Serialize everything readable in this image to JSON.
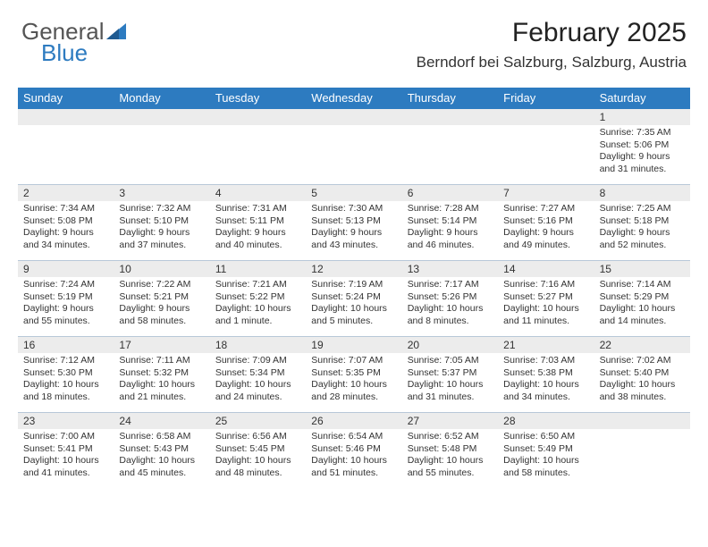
{
  "logo": {
    "general": "General",
    "blue": "Blue"
  },
  "header": {
    "month": "February 2025",
    "location": "Berndorf bei Salzburg, Salzburg, Austria"
  },
  "dayHeaders": [
    "Sunday",
    "Monday",
    "Tuesday",
    "Wednesday",
    "Thursday",
    "Friday",
    "Saturday"
  ],
  "colors": {
    "headerBar": "#2d7bc0",
    "bandGray": "#ececec",
    "rowBorder": "#b8c8d8",
    "textColor": "#333333",
    "logoBlue": "#2d7bc0",
    "logoGray": "#555555",
    "background": "#ffffff"
  },
  "typography": {
    "monthTitleSize": 30,
    "locationSize": 17,
    "dayHeaderSize": 13,
    "dayNumberSize": 12,
    "detailSize": 10.5,
    "fontFamily": "Arial"
  },
  "weeks": [
    [
      null,
      null,
      null,
      null,
      null,
      null,
      {
        "n": "1",
        "sunrise": "Sunrise: 7:35 AM",
        "sunset": "Sunset: 5:06 PM",
        "daylight1": "Daylight: 9 hours",
        "daylight2": "and 31 minutes."
      }
    ],
    [
      {
        "n": "2",
        "sunrise": "Sunrise: 7:34 AM",
        "sunset": "Sunset: 5:08 PM",
        "daylight1": "Daylight: 9 hours",
        "daylight2": "and 34 minutes."
      },
      {
        "n": "3",
        "sunrise": "Sunrise: 7:32 AM",
        "sunset": "Sunset: 5:10 PM",
        "daylight1": "Daylight: 9 hours",
        "daylight2": "and 37 minutes."
      },
      {
        "n": "4",
        "sunrise": "Sunrise: 7:31 AM",
        "sunset": "Sunset: 5:11 PM",
        "daylight1": "Daylight: 9 hours",
        "daylight2": "and 40 minutes."
      },
      {
        "n": "5",
        "sunrise": "Sunrise: 7:30 AM",
        "sunset": "Sunset: 5:13 PM",
        "daylight1": "Daylight: 9 hours",
        "daylight2": "and 43 minutes."
      },
      {
        "n": "6",
        "sunrise": "Sunrise: 7:28 AM",
        "sunset": "Sunset: 5:14 PM",
        "daylight1": "Daylight: 9 hours",
        "daylight2": "and 46 minutes."
      },
      {
        "n": "7",
        "sunrise": "Sunrise: 7:27 AM",
        "sunset": "Sunset: 5:16 PM",
        "daylight1": "Daylight: 9 hours",
        "daylight2": "and 49 minutes."
      },
      {
        "n": "8",
        "sunrise": "Sunrise: 7:25 AM",
        "sunset": "Sunset: 5:18 PM",
        "daylight1": "Daylight: 9 hours",
        "daylight2": "and 52 minutes."
      }
    ],
    [
      {
        "n": "9",
        "sunrise": "Sunrise: 7:24 AM",
        "sunset": "Sunset: 5:19 PM",
        "daylight1": "Daylight: 9 hours",
        "daylight2": "and 55 minutes."
      },
      {
        "n": "10",
        "sunrise": "Sunrise: 7:22 AM",
        "sunset": "Sunset: 5:21 PM",
        "daylight1": "Daylight: 9 hours",
        "daylight2": "and 58 minutes."
      },
      {
        "n": "11",
        "sunrise": "Sunrise: 7:21 AM",
        "sunset": "Sunset: 5:22 PM",
        "daylight1": "Daylight: 10 hours",
        "daylight2": "and 1 minute."
      },
      {
        "n": "12",
        "sunrise": "Sunrise: 7:19 AM",
        "sunset": "Sunset: 5:24 PM",
        "daylight1": "Daylight: 10 hours",
        "daylight2": "and 5 minutes."
      },
      {
        "n": "13",
        "sunrise": "Sunrise: 7:17 AM",
        "sunset": "Sunset: 5:26 PM",
        "daylight1": "Daylight: 10 hours",
        "daylight2": "and 8 minutes."
      },
      {
        "n": "14",
        "sunrise": "Sunrise: 7:16 AM",
        "sunset": "Sunset: 5:27 PM",
        "daylight1": "Daylight: 10 hours",
        "daylight2": "and 11 minutes."
      },
      {
        "n": "15",
        "sunrise": "Sunrise: 7:14 AM",
        "sunset": "Sunset: 5:29 PM",
        "daylight1": "Daylight: 10 hours",
        "daylight2": "and 14 minutes."
      }
    ],
    [
      {
        "n": "16",
        "sunrise": "Sunrise: 7:12 AM",
        "sunset": "Sunset: 5:30 PM",
        "daylight1": "Daylight: 10 hours",
        "daylight2": "and 18 minutes."
      },
      {
        "n": "17",
        "sunrise": "Sunrise: 7:11 AM",
        "sunset": "Sunset: 5:32 PM",
        "daylight1": "Daylight: 10 hours",
        "daylight2": "and 21 minutes."
      },
      {
        "n": "18",
        "sunrise": "Sunrise: 7:09 AM",
        "sunset": "Sunset: 5:34 PM",
        "daylight1": "Daylight: 10 hours",
        "daylight2": "and 24 minutes."
      },
      {
        "n": "19",
        "sunrise": "Sunrise: 7:07 AM",
        "sunset": "Sunset: 5:35 PM",
        "daylight1": "Daylight: 10 hours",
        "daylight2": "and 28 minutes."
      },
      {
        "n": "20",
        "sunrise": "Sunrise: 7:05 AM",
        "sunset": "Sunset: 5:37 PM",
        "daylight1": "Daylight: 10 hours",
        "daylight2": "and 31 minutes."
      },
      {
        "n": "21",
        "sunrise": "Sunrise: 7:03 AM",
        "sunset": "Sunset: 5:38 PM",
        "daylight1": "Daylight: 10 hours",
        "daylight2": "and 34 minutes."
      },
      {
        "n": "22",
        "sunrise": "Sunrise: 7:02 AM",
        "sunset": "Sunset: 5:40 PM",
        "daylight1": "Daylight: 10 hours",
        "daylight2": "and 38 minutes."
      }
    ],
    [
      {
        "n": "23",
        "sunrise": "Sunrise: 7:00 AM",
        "sunset": "Sunset: 5:41 PM",
        "daylight1": "Daylight: 10 hours",
        "daylight2": "and 41 minutes."
      },
      {
        "n": "24",
        "sunrise": "Sunrise: 6:58 AM",
        "sunset": "Sunset: 5:43 PM",
        "daylight1": "Daylight: 10 hours",
        "daylight2": "and 45 minutes."
      },
      {
        "n": "25",
        "sunrise": "Sunrise: 6:56 AM",
        "sunset": "Sunset: 5:45 PM",
        "daylight1": "Daylight: 10 hours",
        "daylight2": "and 48 minutes."
      },
      {
        "n": "26",
        "sunrise": "Sunrise: 6:54 AM",
        "sunset": "Sunset: 5:46 PM",
        "daylight1": "Daylight: 10 hours",
        "daylight2": "and 51 minutes."
      },
      {
        "n": "27",
        "sunrise": "Sunrise: 6:52 AM",
        "sunset": "Sunset: 5:48 PM",
        "daylight1": "Daylight: 10 hours",
        "daylight2": "and 55 minutes."
      },
      {
        "n": "28",
        "sunrise": "Sunrise: 6:50 AM",
        "sunset": "Sunset: 5:49 PM",
        "daylight1": "Daylight: 10 hours",
        "daylight2": "and 58 minutes."
      },
      null
    ]
  ]
}
